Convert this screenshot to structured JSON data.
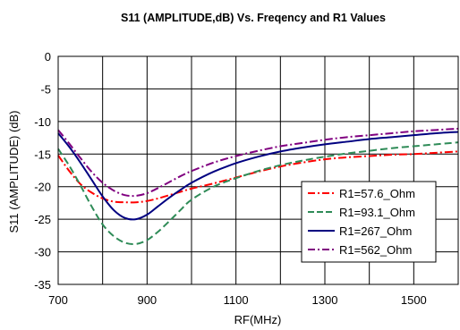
{
  "chart_data": {
    "type": "line",
    "title": "S11  (AMPLITUDE,dB) Vs. Freqency and R1 Values",
    "xlabel": "RF(MHz)",
    "ylabel": "S11  (AMPLITUDE) (dB)",
    "xlim": [
      700,
      1600
    ],
    "ylim": [
      -35,
      0
    ],
    "xticks": [
      700,
      900,
      1100,
      1300,
      1500
    ],
    "yticks": [
      0,
      -5,
      -10,
      -15,
      -20,
      -25,
      -30,
      -35
    ],
    "grid": true,
    "legend_position": "bottom-right",
    "series": [
      {
        "name": "R1=57.6_Ohm",
        "color": "#ff0000",
        "dash": "dash-dot",
        "x": [
          700,
          725,
          750,
          775,
          800,
          825,
          850,
          875,
          900,
          925,
          950,
          975,
          1000,
          1050,
          1100,
          1150,
          1200,
          1250,
          1300,
          1350,
          1400,
          1450,
          1500,
          1550,
          1600
        ],
        "y": [
          -15.2,
          -17.6,
          -19.6,
          -20.9,
          -21.8,
          -22.3,
          -22.4,
          -22.4,
          -22.2,
          -21.8,
          -21.3,
          -20.8,
          -20.3,
          -19.5,
          -18.6,
          -17.7,
          -16.9,
          -16.3,
          -15.8,
          -15.5,
          -15.3,
          -15.1,
          -15.0,
          -14.8,
          -14.6
        ]
      },
      {
        "name": "R1=93.1_Ohm",
        "color": "#2e8b57",
        "dash": "dash",
        "x": [
          700,
          725,
          750,
          775,
          800,
          825,
          850,
          875,
          900,
          925,
          950,
          975,
          1000,
          1050,
          1100,
          1150,
          1200,
          1250,
          1300,
          1350,
          1400,
          1450,
          1500,
          1550,
          1600
        ],
        "y": [
          -14.2,
          -16.8,
          -19.8,
          -23.0,
          -25.8,
          -27.6,
          -28.6,
          -28.8,
          -28.2,
          -26.9,
          -25.3,
          -23.6,
          -22.0,
          -20.0,
          -18.7,
          -17.6,
          -16.7,
          -16.0,
          -15.4,
          -14.9,
          -14.5,
          -14.1,
          -13.8,
          -13.5,
          -13.2
        ]
      },
      {
        "name": "R1=267_Ohm",
        "color": "#000080",
        "dash": "solid",
        "x": [
          700,
          725,
          750,
          775,
          800,
          825,
          850,
          875,
          900,
          925,
          950,
          975,
          1000,
          1050,
          1100,
          1150,
          1200,
          1250,
          1300,
          1350,
          1400,
          1450,
          1500,
          1550,
          1600
        ],
        "y": [
          -11.8,
          -13.9,
          -16.3,
          -18.9,
          -21.5,
          -23.6,
          -24.8,
          -25.0,
          -24.3,
          -23.0,
          -21.7,
          -20.5,
          -19.4,
          -17.7,
          -16.4,
          -15.4,
          -14.6,
          -14.0,
          -13.5,
          -13.1,
          -12.7,
          -12.4,
          -12.1,
          -11.8,
          -11.6
        ]
      },
      {
        "name": "R1=562_Ohm",
        "color": "#800080",
        "dash": "dash-dot",
        "x": [
          700,
          725,
          750,
          775,
          800,
          825,
          850,
          875,
          900,
          925,
          950,
          975,
          1000,
          1050,
          1100,
          1150,
          1200,
          1250,
          1300,
          1350,
          1400,
          1450,
          1500,
          1550,
          1600
        ],
        "y": [
          -11.3,
          -13.4,
          -15.6,
          -17.7,
          -19.4,
          -20.6,
          -21.3,
          -21.4,
          -21.0,
          -20.2,
          -19.3,
          -18.4,
          -17.6,
          -16.3,
          -15.3,
          -14.5,
          -13.8,
          -13.3,
          -12.8,
          -12.4,
          -12.1,
          -11.8,
          -11.5,
          -11.3,
          -11.1
        ]
      }
    ]
  }
}
